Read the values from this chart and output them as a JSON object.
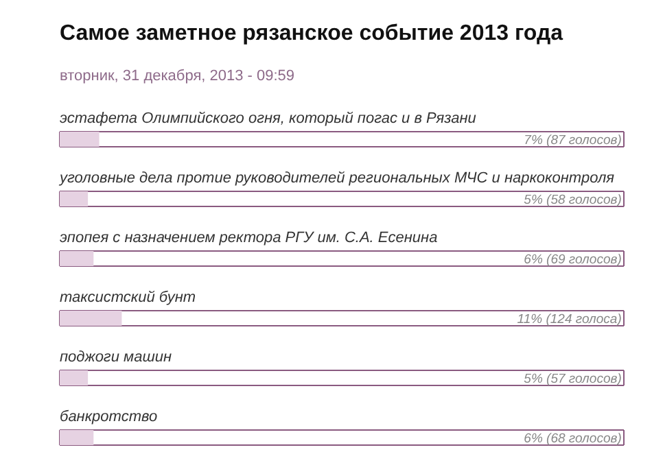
{
  "chart_data": {
    "type": "bar",
    "orientation": "horizontal",
    "title": "Самое заметное рязанское событие 2013 года",
    "subtitle": "вторник, 31 декабря, 2013 - 09:59",
    "categories": [
      "эстафета Олимпийского огня, который погас и в Рязани",
      "уголовные дела протие руководителей региональных МЧС и наркоконтроля",
      "эпопея с назначением ректора РГУ им. С.А. Есенина",
      "таксистский бунт",
      "поджоги машин",
      "банкротство"
    ],
    "values": [
      7,
      5,
      6,
      11,
      5,
      6
    ],
    "value_labels": [
      "7% (87 голосов)",
      "5% (58 голосов)",
      "6% (69 голосов)",
      "11% (124 голоса)",
      "5% (57 голосов)",
      "6% (68 голосов)"
    ],
    "color": "#e6d2e2",
    "xlim": [
      0,
      100
    ],
    "tick_labels": false
  }
}
